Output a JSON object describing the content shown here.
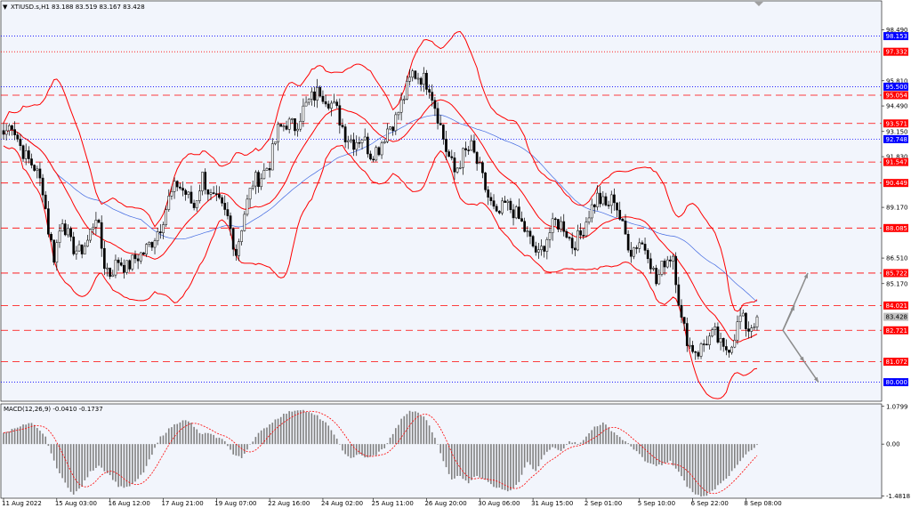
{
  "header": {
    "symbol_info": "XTIUSD.s,H1  83.188 83.519 83.167 83.428",
    "macd_info": "MACD(12,26,9) -0.0410 -0.1737"
  },
  "colors": {
    "background": "#ffffff",
    "plot_background": "#f2f5fc",
    "candle": "#000000",
    "bollinger": "#ff0000",
    "moving_average": "#4169e1",
    "resistance_line": "#ff0000",
    "level_tag_red": "#ff0000",
    "level_tag_blue": "#0000ff",
    "price_tag_gray": "#c0c0c0",
    "macd_histogram": "#808080",
    "macd_signal": "#ff0000",
    "projection_arrow": "#8c8c8c"
  },
  "chart_data": [
    {
      "type": "candlestick",
      "title": "XTIUSD.s,H1",
      "last_price": 83.428,
      "ylim": [
        79.0,
        100.0
      ],
      "price_axis_ticks": [
        "98.490",
        "95.810",
        "94.490",
        "93.150",
        "91.830",
        "89.170",
        "86.510",
        "85.170"
      ],
      "level_tags": [
        {
          "label": "98.153",
          "value": 98.153,
          "color": "blue",
          "line": "dotted"
        },
        {
          "label": "97.332",
          "value": 97.332,
          "color": "red",
          "line": "dotted"
        },
        {
          "label": "95.500",
          "value": 95.5,
          "color": "blue",
          "line": "dotted"
        },
        {
          "label": "95.054",
          "value": 95.054,
          "color": "red",
          "line": "dashed"
        },
        {
          "label": "93.571",
          "value": 93.571,
          "color": "red",
          "line": "dashed"
        },
        {
          "label": "92.748",
          "value": 92.748,
          "color": "blue",
          "line": "dotted"
        },
        {
          "label": "91.547",
          "value": 91.547,
          "color": "red",
          "line": "dashed"
        },
        {
          "label": "90.449",
          "value": 90.449,
          "color": "red",
          "line": "dashed"
        },
        {
          "label": "88.085",
          "value": 88.085,
          "color": "red",
          "line": "dashed"
        },
        {
          "label": "85.722",
          "value": 85.722,
          "color": "red",
          "line": "dashed"
        },
        {
          "label": "84.021",
          "value": 84.021,
          "color": "red",
          "line": "dashed"
        },
        {
          "label": "83.428",
          "value": 83.428,
          "color": "gray",
          "line": "none"
        },
        {
          "label": "82.721",
          "value": 82.721,
          "color": "red",
          "line": "dashed"
        },
        {
          "label": "81.072",
          "value": 81.072,
          "color": "red",
          "line": "dashed"
        },
        {
          "label": "80.000",
          "value": 80.0,
          "color": "blue",
          "line": "dotted"
        }
      ],
      "time_labels": [
        "11 Aug 2022",
        "15 Aug 03:00",
        "16 Aug 12:00",
        "17 Aug 21:00",
        "19 Aug 07:00",
        "22 Aug 16:00",
        "24 Aug 02:00",
        "25 Aug 11:00",
        "26 Aug 20:00",
        "30 Aug 06:00",
        "31 Aug 15:00",
        "2 Sep 01:00",
        "5 Sep 10:00",
        "6 Sep 22:00",
        "8 Sep 08:00"
      ],
      "close_path": [
        [
          0,
          93.0
        ],
        [
          3,
          93.6
        ],
        [
          6,
          92.4
        ],
        [
          8,
          91.8
        ],
        [
          11,
          91.3
        ],
        [
          14,
          90.2
        ],
        [
          16,
          88.0
        ],
        [
          18,
          86.6
        ],
        [
          21,
          88.6
        ],
        [
          24,
          87.2
        ],
        [
          27,
          86.8
        ],
        [
          30,
          87.4
        ],
        [
          33,
          88.8
        ],
        [
          36,
          86.2
        ],
        [
          38,
          85.7
        ],
        [
          41,
          86.4
        ],
        [
          44,
          86.0
        ],
        [
          47,
          86.5
        ],
        [
          50,
          86.8
        ],
        [
          53,
          87.4
        ],
        [
          56,
          88.2
        ],
        [
          59,
          89.6
        ],
        [
          62,
          90.4
        ],
        [
          65,
          89.9
        ],
        [
          68,
          89.2
        ],
        [
          71,
          90.8
        ],
        [
          74,
          89.7
        ],
        [
          77,
          89.3
        ],
        [
          80,
          88.6
        ],
        [
          83,
          86.8
        ],
        [
          86,
          88.9
        ],
        [
          89,
          90.5
        ],
        [
          92,
          90.8
        ],
        [
          95,
          91.5
        ],
        [
          98,
          93.2
        ],
        [
          101,
          93.6
        ],
        [
          104,
          93.4
        ],
        [
          107,
          94.3
        ],
        [
          110,
          94.9
        ],
        [
          113,
          95.3
        ],
        [
          116,
          94.8
        ],
        [
          119,
          94.2
        ],
        [
          122,
          93.0
        ],
        [
          125,
          92.6
        ],
        [
          128,
          92.9
        ],
        [
          131,
          92.0
        ],
        [
          134,
          92.3
        ],
        [
          137,
          93.3
        ],
        [
          140,
          93.8
        ],
        [
          143,
          95.0
        ],
        [
          146,
          96.2
        ],
        [
          149,
          96.0
        ],
        [
          152,
          95.6
        ],
        [
          155,
          94.0
        ],
        [
          158,
          92.2
        ],
        [
          161,
          91.0
        ],
        [
          164,
          91.9
        ],
        [
          167,
          92.3
        ],
        [
          170,
          91.1
        ],
        [
          173,
          89.7
        ],
        [
          176,
          88.6
        ],
        [
          179,
          89.3
        ],
        [
          182,
          89.0
        ],
        [
          185,
          88.3
        ],
        [
          188,
          87.4
        ],
        [
          191,
          86.6
        ],
        [
          194,
          87.6
        ],
        [
          197,
          88.4
        ],
        [
          200,
          88.2
        ],
        [
          203,
          87.2
        ],
        [
          206,
          87.7
        ],
        [
          209,
          88.9
        ],
        [
          212,
          89.7
        ],
        [
          215,
          89.2
        ],
        [
          218,
          89.7
        ],
        [
          221,
          88.1
        ],
        [
          224,
          86.9
        ],
        [
          227,
          87.4
        ],
        [
          230,
          86.9
        ],
        [
          233,
          85.2
        ],
        [
          236,
          86.4
        ],
        [
          239,
          86.7
        ],
        [
          242,
          83.2
        ],
        [
          245,
          81.9
        ],
        [
          248,
          81.6
        ],
        [
          251,
          82.2
        ],
        [
          254,
          82.5
        ],
        [
          257,
          81.6
        ],
        [
          260,
          82.1
        ],
        [
          263,
          83.4
        ],
        [
          266,
          82.8
        ],
        [
          269,
          83.4
        ]
      ],
      "indicators": [
        "Bollinger Bands",
        "Moving Average"
      ]
    },
    {
      "type": "macd",
      "title": "MACD(12,26,9)",
      "macd_value": -0.041,
      "signal_value": -0.1737,
      "axis_ticks": [
        "1.0799",
        "0.00",
        "-1.4818"
      ],
      "ylim": [
        -1.55,
        1.15
      ],
      "histogram_path": [
        [
          0,
          0.3
        ],
        [
          5,
          0.5
        ],
        [
          10,
          0.6
        ],
        [
          15,
          0.2
        ],
        [
          18,
          -0.5
        ],
        [
          21,
          -1.0
        ],
        [
          25,
          -1.45
        ],
        [
          28,
          -1.2
        ],
        [
          31,
          -0.8
        ],
        [
          34,
          -0.6
        ],
        [
          38,
          -0.9
        ],
        [
          41,
          -1.2
        ],
        [
          44,
          -1.25
        ],
        [
          47,
          -1.1
        ],
        [
          50,
          -0.8
        ],
        [
          53,
          -0.3
        ],
        [
          56,
          0.2
        ],
        [
          60,
          0.5
        ],
        [
          64,
          0.7
        ],
        [
          67,
          0.6
        ],
        [
          70,
          0.3
        ],
        [
          73,
          0.3
        ],
        [
          76,
          0.2
        ],
        [
          79,
          0.1
        ],
        [
          82,
          -0.3
        ],
        [
          85,
          -0.4
        ],
        [
          88,
          0.0
        ],
        [
          91,
          0.3
        ],
        [
          94,
          0.5
        ],
        [
          97,
          0.7
        ],
        [
          100,
          0.85
        ],
        [
          103,
          0.95
        ],
        [
          106,
          1.0
        ],
        [
          109,
          0.9
        ],
        [
          112,
          0.8
        ],
        [
          115,
          0.6
        ],
        [
          118,
          0.3
        ],
        [
          121,
          -0.2
        ],
        [
          124,
          -0.4
        ],
        [
          127,
          -0.3
        ],
        [
          130,
          -0.4
        ],
        [
          133,
          -0.3
        ],
        [
          136,
          -0.1
        ],
        [
          139,
          0.3
        ],
        [
          142,
          0.7
        ],
        [
          145,
          0.95
        ],
        [
          148,
          0.9
        ],
        [
          151,
          0.7
        ],
        [
          154,
          0.2
        ],
        [
          157,
          -0.5
        ],
        [
          160,
          -1.0
        ],
        [
          163,
          -0.9
        ],
        [
          166,
          -1.1
        ],
        [
          169,
          -0.9
        ],
        [
          172,
          -1.0
        ],
        [
          175,
          -1.2
        ],
        [
          178,
          -1.3
        ],
        [
          181,
          -1.35
        ],
        [
          184,
          -1.1
        ],
        [
          187,
          -0.5
        ],
        [
          190,
          -0.8
        ],
        [
          193,
          -0.3
        ],
        [
          196,
          -0.1
        ],
        [
          199,
          -0.2
        ],
        [
          202,
          0.1
        ],
        [
          205,
          0.0
        ],
        [
          208,
          0.2
        ],
        [
          211,
          0.5
        ],
        [
          214,
          0.6
        ],
        [
          217,
          0.4
        ],
        [
          220,
          0.2
        ],
        [
          223,
          0.0
        ],
        [
          226,
          -0.2
        ],
        [
          229,
          -0.5
        ],
        [
          232,
          -0.6
        ],
        [
          235,
          -0.6
        ],
        [
          238,
          -0.5
        ],
        [
          241,
          -0.8
        ],
        [
          244,
          -1.2
        ],
        [
          247,
          -1.45
        ],
        [
          250,
          -1.5
        ],
        [
          253,
          -1.35
        ],
        [
          256,
          -1.1
        ],
        [
          259,
          -0.9
        ],
        [
          262,
          -0.6
        ],
        [
          265,
          -0.3
        ],
        [
          269,
          -0.05
        ]
      ]
    }
  ]
}
